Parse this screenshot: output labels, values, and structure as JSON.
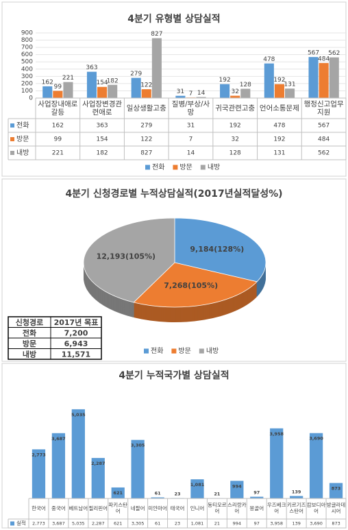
{
  "chart_data": [
    {
      "type": "bar",
      "title": "4분기 유형별 상담실적",
      "categories": [
        "사업장내애로갈등",
        "사업장변경관련애로",
        "일상생활고충",
        "질병/부상/사망",
        "귀국관련고충",
        "언어소통문제",
        "행정신고업무지원"
      ],
      "series": [
        {
          "name": "전화",
          "color": "#5b9bd5",
          "values": [
            162,
            363,
            279,
            31,
            192,
            478,
            567
          ]
        },
        {
          "name": "방문",
          "color": "#ed7d31",
          "values": [
            99,
            154,
            122,
            7,
            32,
            192,
            484
          ]
        },
        {
          "name": "내방",
          "color": "#a5a5a5",
          "values": [
            221,
            182,
            827,
            14,
            128,
            131,
            562
          ]
        }
      ],
      "ylim": [
        0,
        900
      ],
      "yticks": [
        0,
        100,
        200,
        300,
        400,
        500,
        600,
        700,
        800,
        900
      ],
      "grid": true,
      "legend": "bottom"
    },
    {
      "type": "pie",
      "title": "4분기 신청경로별 누적상담실적(2017년실적달성%)",
      "categories": [
        "전화",
        "방문",
        "내방"
      ],
      "values": [
        9184,
        7268,
        12193
      ],
      "value_labels": [
        "9,184(128%)",
        "7,268(105%)",
        "12,193(105%)"
      ],
      "colors": [
        "#5b9bd5",
        "#ed7d31",
        "#a5a5a5"
      ],
      "legend": "bottom",
      "table": {
        "columns": [
          "신청경로",
          "2017년 목표"
        ],
        "rows": [
          [
            "전화",
            "7,200"
          ],
          [
            "방문",
            "6,943"
          ],
          [
            "내방",
            "11,571"
          ]
        ]
      }
    },
    {
      "type": "bar",
      "title": "4분기 누적국가별 상담실적",
      "categories": [
        "한국어",
        "중국어",
        "베트남어",
        "필리핀어",
        "파키스탄어",
        "네팔어",
        "미얀마어",
        "태국어",
        "인니어",
        "동티모르어",
        "스리랑카어",
        "몽골어",
        "우즈베크어",
        "키르기즈스탄어",
        "캄보디아어",
        "방글라데시어"
      ],
      "series": [
        {
          "name": "실적",
          "color": "#5b9bd5",
          "values": [
            2773,
            3687,
            5035,
            2287,
            621,
            3305,
            61,
            23,
            1081,
            21,
            994,
            97,
            3958,
            139,
            3690,
            873
          ],
          "value_labels": [
            "2,773",
            "3,687",
            "5,035",
            "2,287",
            "621",
            "3,305",
            "61",
            "23",
            "1,081",
            "21",
            "994",
            "97",
            "3,958",
            "139",
            "3,690",
            "873"
          ]
        }
      ],
      "ylim": [
        0,
        6000
      ]
    }
  ]
}
